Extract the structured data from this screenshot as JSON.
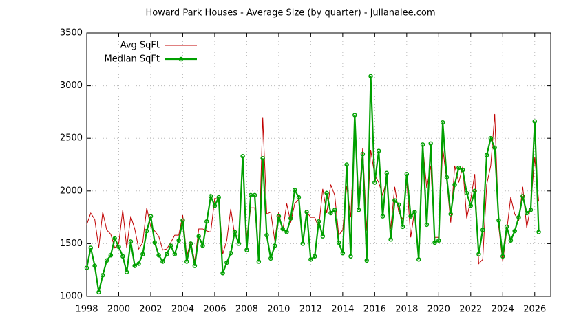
{
  "chart_data": {
    "type": "line",
    "title": "Howard Park Houses - Average Size (by quarter) - julianalee.com",
    "x": [
      1998,
      1998.25,
      1998.5,
      1998.75,
      1999,
      1999.25,
      1999.5,
      1999.75,
      2000,
      2000.25,
      2000.5,
      2000.75,
      2001,
      2001.25,
      2001.5,
      2001.75,
      2002,
      2002.25,
      2002.5,
      2002.75,
      2003,
      2003.25,
      2003.5,
      2003.75,
      2004,
      2004.25,
      2004.5,
      2004.75,
      2005,
      2005.25,
      2005.5,
      2005.75,
      2006,
      2006.25,
      2006.5,
      2006.75,
      2007,
      2007.25,
      2007.5,
      2007.75,
      2008,
      2008.25,
      2008.5,
      2008.75,
      2009,
      2009.25,
      2009.5,
      2009.75,
      2010,
      2010.25,
      2010.5,
      2010.75,
      2011,
      2011.25,
      2011.5,
      2011.75,
      2012,
      2012.25,
      2012.5,
      2012.75,
      2013,
      2013.25,
      2013.5,
      2013.75,
      2014,
      2014.25,
      2014.5,
      2014.75,
      2015,
      2015.25,
      2015.5,
      2015.75,
      2016,
      2016.25,
      2016.5,
      2016.75,
      2017,
      2017.25,
      2017.5,
      2017.75,
      2018,
      2018.25,
      2018.5,
      2018.75,
      2019,
      2019.25,
      2019.5,
      2019.75,
      2020,
      2020.25,
      2020.5,
      2020.75,
      2021,
      2021.25,
      2021.5,
      2021.75,
      2022,
      2022.25,
      2022.5,
      2022.75,
      2023,
      2023.25,
      2023.5,
      2023.75,
      2024,
      2024.25,
      2024.5,
      2024.75,
      2025,
      2025.25,
      2025.5,
      2025.75,
      2026,
      2026.25
    ],
    "series": [
      {
        "name": "Avg SqFt",
        "color": "#c00000",
        "marker": false,
        "values": [
          1680,
          1790,
          1730,
          1460,
          1800,
          1630,
          1590,
          1460,
          1500,
          1820,
          1460,
          1760,
          1640,
          1450,
          1510,
          1840,
          1660,
          1620,
          1570,
          1440,
          1450,
          1510,
          1580,
          1580,
          1770,
          1380,
          1520,
          1330,
          1640,
          1640,
          1620,
          1610,
          1930,
          1920,
          1400,
          1530,
          1830,
          1580,
          1570,
          2260,
          1560,
          1840,
          1840,
          1390,
          2700,
          1780,
          1800,
          1530,
          1800,
          1620,
          1880,
          1700,
          1880,
          1920,
          1520,
          1800,
          1750,
          1750,
          1650,
          2020,
          1790,
          2060,
          1960,
          1580,
          1630,
          2050,
          1750,
          2620,
          1900,
          2410,
          1620,
          2390,
          2150,
          2080,
          1960,
          2110,
          1640,
          2040,
          1800,
          1730,
          2100,
          1560,
          1820,
          1390,
          2430,
          2030,
          2240,
          1560,
          1560,
          2410,
          2100,
          1700,
          2240,
          2080,
          2230,
          1740,
          1920,
          2160,
          1310,
          1350,
          2060,
          2240,
          2730,
          1660,
          1330,
          1620,
          1940,
          1780,
          1720,
          2040,
          1650,
          1860,
          2320,
          1900
        ]
      },
      {
        "name": "Median SqFt",
        "color": "#00a000",
        "marker": true,
        "values": [
          1270,
          1460,
          1290,
          1040,
          1200,
          1340,
          1390,
          1550,
          1470,
          1380,
          1230,
          1520,
          1290,
          1310,
          1400,
          1620,
          1760,
          1510,
          1390,
          1330,
          1400,
          1480,
          1400,
          1530,
          1720,
          1330,
          1500,
          1290,
          1570,
          1480,
          1710,
          1950,
          1860,
          1940,
          1220,
          1320,
          1410,
          1610,
          1500,
          2330,
          1440,
          1960,
          1960,
          1330,
          2310,
          1580,
          1360,
          1480,
          1760,
          1640,
          1610,
          1740,
          2010,
          1940,
          1500,
          1800,
          1350,
          1380,
          1710,
          1570,
          1980,
          1790,
          1820,
          1510,
          1410,
          2250,
          1380,
          2720,
          1820,
          2350,
          1340,
          3090,
          2080,
          2380,
          1760,
          2170,
          1540,
          1910,
          1870,
          1660,
          2160,
          1760,
          1800,
          1350,
          2440,
          1680,
          2450,
          1510,
          1530,
          2650,
          2130,
          1780,
          2060,
          2220,
          2200,
          1980,
          1860,
          2000,
          1400,
          1630,
          2340,
          2500,
          2410,
          1720,
          1380,
          1660,
          1530,
          1620,
          1750,
          1950,
          1790,
          1820,
          2660,
          1610
        ]
      }
    ],
    "xlim": [
      1998,
      2027
    ],
    "ylim": [
      1000,
      3500
    ],
    "xticks": [
      1998,
      2000,
      2002,
      2004,
      2006,
      2008,
      2010,
      2012,
      2014,
      2016,
      2018,
      2020,
      2022,
      2024,
      2026
    ],
    "yticks": [
      1000,
      1500,
      2000,
      2500,
      3000,
      3500
    ],
    "grid": true,
    "legend": "top-left"
  }
}
